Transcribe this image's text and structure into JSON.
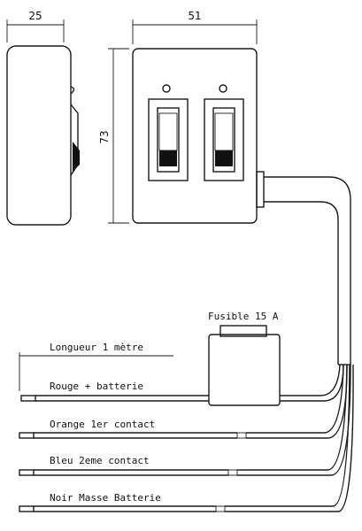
{
  "dimensions": {
    "depth": "25",
    "width": "51",
    "height": "73"
  },
  "labels": {
    "fuse": "Fusible 15 A",
    "length": "Longueur 1 mètre",
    "wire_red": "Rouge + batterie",
    "wire_orange": "Orange 1er contact",
    "wire_blue": "Bleu 2eme contact",
    "wire_black": "Noir Masse Batterie"
  }
}
